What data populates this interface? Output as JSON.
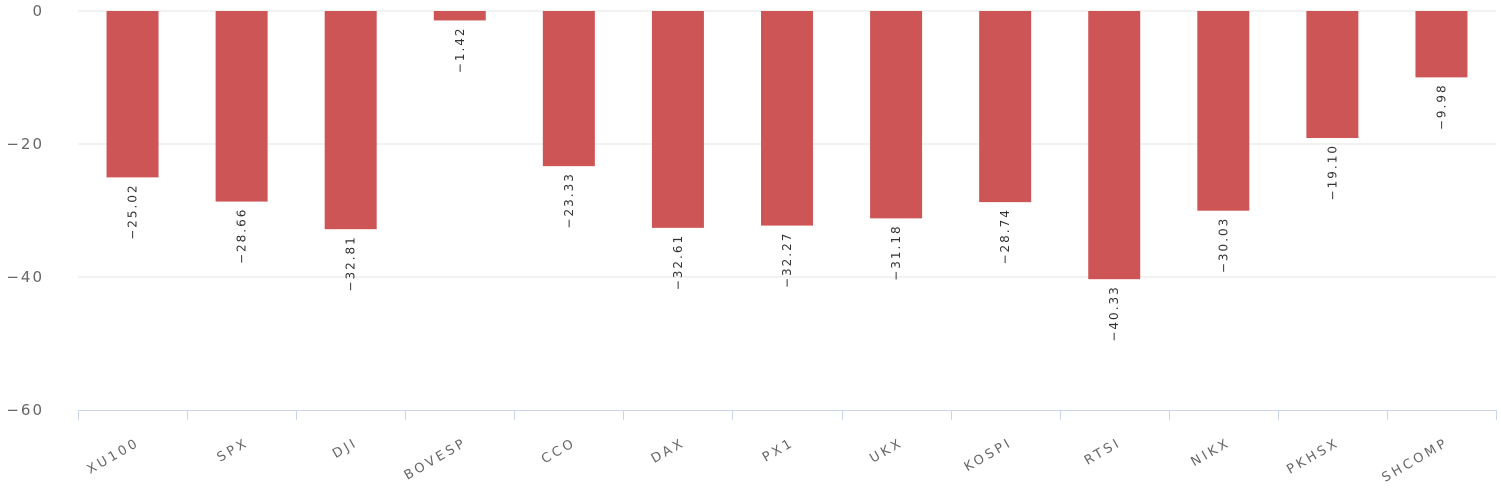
{
  "chart_data": {
    "type": "bar",
    "categories": [
      "XU100",
      "SPX",
      "DJI",
      "BOVESP",
      "CCO",
      "DAX",
      "PX1",
      "UKX",
      "KOSPI",
      "RTSI",
      "NIKX",
      "PKHSX",
      "SHCOMP"
    ],
    "values": [
      -25.02,
      -28.66,
      -32.81,
      -1.42,
      -23.33,
      -32.61,
      -32.27,
      -31.18,
      -28.74,
      -40.33,
      -30.03,
      -19.1,
      -9.98
    ],
    "data_labels": [
      "−25.02",
      "−28.66",
      "−32.81",
      "−1.42",
      "−23.33",
      "−32.61",
      "−32.27",
      "−31.18",
      "−28.74",
      "−40.33",
      "−30.03",
      "−19.10",
      "−9.98"
    ],
    "ylim": [
      -60,
      0
    ],
    "yticks": [
      0,
      -20,
      -40,
      -60
    ],
    "ytick_labels": [
      "0",
      "−20",
      "−40",
      "−60"
    ],
    "grid": true,
    "bar_color": "#cd5555",
    "title": "",
    "xlabel": "",
    "ylabel": ""
  }
}
